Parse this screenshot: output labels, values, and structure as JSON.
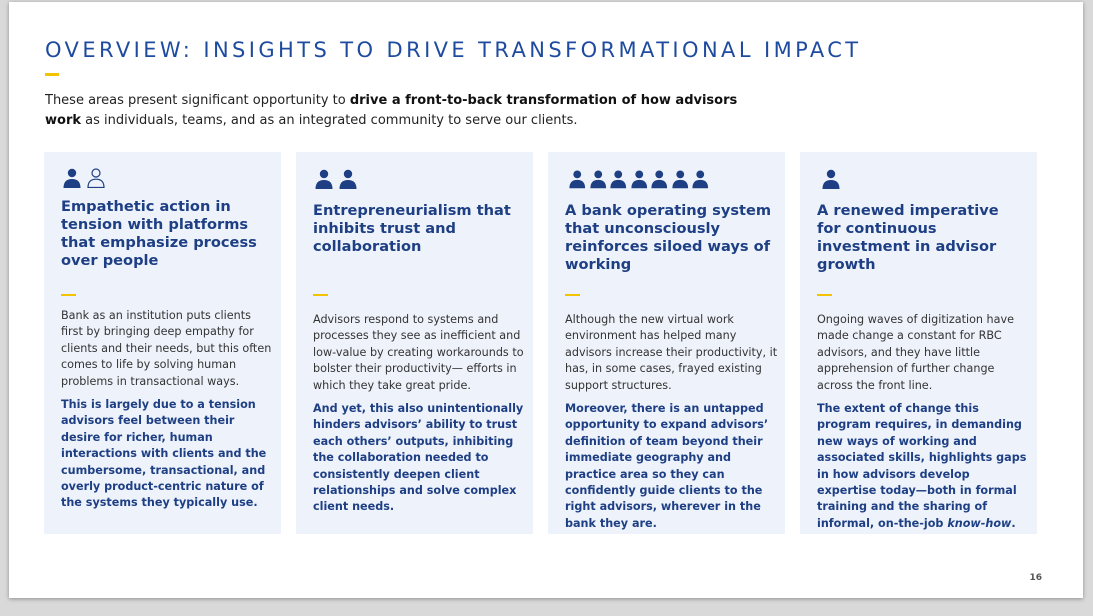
{
  "title": "OVERVIEW: INSIGHTS TO DRIVE TRANSFORMATIONAL IMPACT",
  "intro": {
    "pre": "These areas present significant opportunity to ",
    "bold": "drive a front-to-back transformation of how advisors work",
    "post": " as individuals, teams, and as an integrated community to serve our clients."
  },
  "colors": {
    "accent": "#f3c300",
    "primary": "#1e3f84",
    "card_bg": "#eef3fb"
  },
  "cards": [
    {
      "icons": [
        "person-filled-icon",
        "person-outline-icon"
      ],
      "heading": "Empathetic action in tension with platforms that emphasize process over people",
      "body": "Bank as an institution puts clients first by bringing deep empathy for clients and their needs, but this often comes to life by solving human problems in transactional ways.",
      "emphasis": "This is largely due to a tension advisors feel between their desire for richer, human interactions with clients and the cumbersome, transactional, and overly product-centric nature of the systems they typically use.",
      "emphasis_italic": "",
      "emphasis_end": ""
    },
    {
      "icons": [
        "person-filled-icon",
        "person-filled-icon"
      ],
      "heading": "Entrepreneurialism that inhibits trust and collaboration",
      "body": "Advisors respond to systems and processes they see as inefficient and low-value by creating workarounds to bolster their productivity— efforts in which they take great pride.",
      "emphasis": "And yet, this also unintentionally hinders advisors’ ability to trust each others’ outputs, inhibiting the collaboration needed to consistently deepen client relationships and solve complex client needs.",
      "emphasis_italic": "",
      "emphasis_end": ""
    },
    {
      "icons": [
        "person-filled-icon",
        "person-filled-icon",
        "person-filled-icon",
        "person-filled-icon",
        "person-filled-icon",
        "person-filled-icon",
        "person-filled-icon"
      ],
      "heading": "A bank operating system that unconsciously reinforces siloed ways of working",
      "body": "Although the new virtual work environment has helped many advisors increase their productivity, it has, in some cases, frayed existing support structures.",
      "emphasis": "Moreover, there is an untapped opportunity to expand advisors’ definition of team beyond their immediate geography and practice area so they can confidently guide clients to the right advisors, wherever in the bank they are.",
      "emphasis_italic": "",
      "emphasis_end": ""
    },
    {
      "icons": [
        "person-filled-icon"
      ],
      "heading": "A renewed imperative for continuous investment in advisor growth",
      "body": "Ongoing waves of digitization have made change a constant for RBC advisors, and they have little apprehension of further change across the front line.",
      "emphasis": "The extent of change this program requires, in demanding new ways of working and associated skills, highlights gaps in how advisors develop expertise today—both in formal training and the sharing of informal, on-the-job ",
      "emphasis_italic": "know-how",
      "emphasis_end": "."
    }
  ],
  "page_number": "16"
}
